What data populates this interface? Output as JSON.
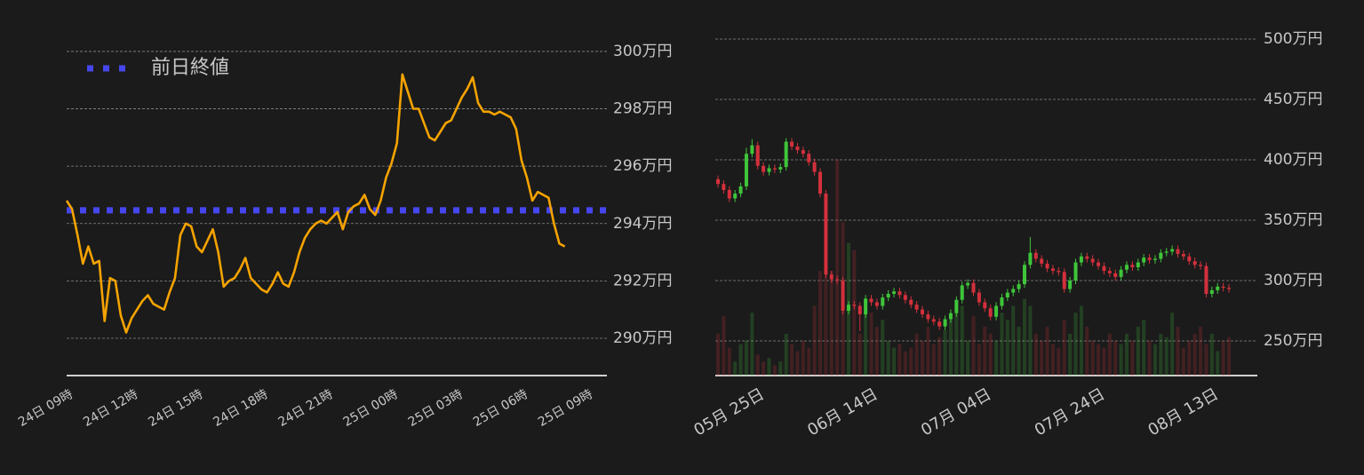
{
  "chart_data": [
    {
      "type": "line",
      "categories": [
        "24日 09時",
        null,
        null,
        null,
        null,
        null,
        null,
        null,
        null,
        null,
        null,
        null,
        "24日 12時",
        null,
        null,
        null,
        null,
        null,
        null,
        null,
        null,
        null,
        null,
        null,
        "24日 15時",
        null,
        null,
        null,
        null,
        null,
        null,
        null,
        null,
        null,
        null,
        null,
        "24日 18時",
        null,
        null,
        null,
        null,
        null,
        null,
        null,
        null,
        null,
        null,
        null,
        "24日 21時",
        null,
        null,
        null,
        null,
        null,
        null,
        null,
        null,
        null,
        null,
        null,
        "25日 00時",
        null,
        null,
        null,
        null,
        null,
        null,
        null,
        null,
        null,
        null,
        null,
        "25日 03時",
        null,
        null,
        null,
        null,
        null,
        null,
        null,
        null,
        null,
        null,
        null,
        "25日 06時",
        null,
        null,
        null,
        null,
        null,
        null,
        null,
        null,
        null,
        null,
        null,
        "25日 09時"
      ],
      "values": [
        2948000,
        2945000,
        2936000,
        2926000,
        2932000,
        2926000,
        2927000,
        2906000,
        2921000,
        2920000,
        2908000,
        2902000,
        2907000,
        2910000,
        2913000,
        2915000,
        2912000,
        2911000,
        2910000,
        2916000,
        2921000,
        2936000,
        2940000,
        2939000,
        2932000,
        2930000,
        2934000,
        2938000,
        2930000,
        2918000,
        2920000,
        2921000,
        2924000,
        2928000,
        2921000,
        2919000,
        2917000,
        2916000,
        2919000,
        2923000,
        2919000,
        2918000,
        2923000,
        2930000,
        2935000,
        2938000,
        2940000,
        2941000,
        2940000,
        2942000,
        2944000,
        2938000,
        2944000,
        2946000,
        2947000,
        2950000,
        2945000,
        2943000,
        2948000,
        2956000,
        2961000,
        2968000,
        2992000,
        2986000,
        2980000,
        2980000,
        2975000,
        2970000,
        2969000,
        2972000,
        2975000,
        2976000,
        2980000,
        2984000,
        2987000,
        2991000,
        2982000,
        2979000,
        2979000,
        2978000,
        2979000,
        2978000,
        2977000,
        2973000,
        2962000,
        2956000,
        2948000,
        2951000,
        2950000,
        2949000,
        2940000,
        2933000,
        2932000,
        null,
        null,
        null,
        null
      ],
      "color": "#f5a300",
      "reference": {
        "name": "前日終値",
        "value": 2944600,
        "color": "#4646ee"
      },
      "legend": "upper left",
      "ylim": [
        2887000,
        3004000
      ],
      "yticks": [
        {
          "value": 2900000,
          "label": "290万円"
        },
        {
          "value": 2920000,
          "label": "292万円"
        },
        {
          "value": 2940000,
          "label": "294万円"
        },
        {
          "value": 2960000,
          "label": "296万円"
        },
        {
          "value": 2980000,
          "label": "298万円"
        },
        {
          "value": 3000000,
          "label": "300万円"
        }
      ],
      "grid": true
    },
    {
      "type": "candlestick",
      "categories": [
        null,
        null,
        null,
        null,
        null,
        null,
        null,
        "05月 25日",
        null,
        null,
        null,
        null,
        null,
        null,
        null,
        null,
        null,
        null,
        null,
        null,
        null,
        null,
        null,
        null,
        null,
        null,
        null,
        "06月 14日",
        null,
        null,
        null,
        null,
        null,
        null,
        null,
        null,
        null,
        null,
        null,
        null,
        null,
        null,
        null,
        null,
        null,
        null,
        null,
        "07月 04日",
        null,
        null,
        null,
        null,
        null,
        null,
        null,
        null,
        null,
        null,
        null,
        null,
        null,
        null,
        null,
        null,
        null,
        null,
        null,
        "07月 24日",
        null,
        null,
        null,
        null,
        null,
        null,
        null,
        null,
        null,
        null,
        null,
        null,
        null,
        null,
        null,
        null,
        null,
        null,
        null,
        "08月 13日",
        null,
        null,
        null
      ],
      "open": [
        3840000,
        3800000,
        3750000,
        3680000,
        3720000,
        3780000,
        4050000,
        4120000,
        3950000,
        3900000,
        3930000,
        3920000,
        3940000,
        4150000,
        4110000,
        4080000,
        4050000,
        3980000,
        3900000,
        3720000,
        3050000,
        3010000,
        3000000,
        2750000,
        2800000,
        2790000,
        2720000,
        2850000,
        2820000,
        2790000,
        2860000,
        2890000,
        2910000,
        2880000,
        2840000,
        2800000,
        2760000,
        2720000,
        2680000,
        2660000,
        2620000,
        2680000,
        2730000,
        2840000,
        2960000,
        2980000,
        2900000,
        2820000,
        2770000,
        2700000,
        2790000,
        2860000,
        2900000,
        2930000,
        2970000,
        3130000,
        3230000,
        3180000,
        3140000,
        3100000,
        3080000,
        3070000,
        2930000,
        3000000,
        3150000,
        3200000,
        3180000,
        3150000,
        3120000,
        3080000,
        3060000,
        3030000,
        3090000,
        3130000,
        3110000,
        3150000,
        3190000,
        3170000,
        3180000,
        3230000,
        3240000,
        3260000,
        3220000,
        3200000,
        3160000,
        3130000,
        3120000,
        2890000,
        2920000,
        2950000,
        2940000
      ],
      "high": [
        3870000,
        3830000,
        3780000,
        3750000,
        3810000,
        4100000,
        4170000,
        4150000,
        3980000,
        3960000,
        3960000,
        3970000,
        4180000,
        4180000,
        4140000,
        4110000,
        4080000,
        4010000,
        3930000,
        3750000,
        3080000,
        3040000,
        3030000,
        2830000,
        2830000,
        2820000,
        2880000,
        2880000,
        2850000,
        2890000,
        2920000,
        2940000,
        2940000,
        2910000,
        2870000,
        2830000,
        2790000,
        2750000,
        2710000,
        2690000,
        2710000,
        2760000,
        2870000,
        2990000,
        3010000,
        3010000,
        2930000,
        2850000,
        2800000,
        2820000,
        2890000,
        2930000,
        2960000,
        3000000,
        3160000,
        3360000,
        3260000,
        3210000,
        3170000,
        3130000,
        3110000,
        3100000,
        3030000,
        3180000,
        3230000,
        3230000,
        3210000,
        3180000,
        3150000,
        3110000,
        3090000,
        3120000,
        3160000,
        3160000,
        3180000,
        3220000,
        3220000,
        3210000,
        3260000,
        3270000,
        3290000,
        3290000,
        3250000,
        3230000,
        3190000,
        3160000,
        3150000,
        2950000,
        2980000,
        2980000,
        2970000
      ],
      "low": [
        3770000,
        3720000,
        3650000,
        3650000,
        3690000,
        3750000,
        4020000,
        3920000,
        3870000,
        3870000,
        3890000,
        3890000,
        3910000,
        4080000,
        4050000,
        4020000,
        3950000,
        3870000,
        3690000,
        3020000,
        2980000,
        2970000,
        2720000,
        2720000,
        2760000,
        2580000,
        2690000,
        2790000,
        2760000,
        2760000,
        2830000,
        2860000,
        2850000,
        2810000,
        2770000,
        2730000,
        2690000,
        2650000,
        2630000,
        2590000,
        2590000,
        2650000,
        2700000,
        2810000,
        2930000,
        2870000,
        2790000,
        2740000,
        2670000,
        2670000,
        2760000,
        2830000,
        2870000,
        2900000,
        2940000,
        3100000,
        3150000,
        3110000,
        3070000,
        3050000,
        3040000,
        2900000,
        2900000,
        2970000,
        3120000,
        3150000,
        3120000,
        3090000,
        3050000,
        3030000,
        3000000,
        3000000,
        3060000,
        3080000,
        3080000,
        3120000,
        3140000,
        3140000,
        3150000,
        3200000,
        3210000,
        3190000,
        3170000,
        3130000,
        3100000,
        3090000,
        2860000,
        2860000,
        2890000,
        2910000,
        2900000
      ],
      "close": [
        3800000,
        3750000,
        3680000,
        3720000,
        3780000,
        4050000,
        4120000,
        3950000,
        3900000,
        3930000,
        3920000,
        3940000,
        4150000,
        4110000,
        4080000,
        4050000,
        3980000,
        3900000,
        3720000,
        3050000,
        3010000,
        3000000,
        2750000,
        2800000,
        2790000,
        2720000,
        2850000,
        2820000,
        2790000,
        2860000,
        2890000,
        2910000,
        2880000,
        2840000,
        2800000,
        2760000,
        2720000,
        2680000,
        2660000,
        2620000,
        2680000,
        2730000,
        2840000,
        2960000,
        2980000,
        2900000,
        2820000,
        2770000,
        2700000,
        2790000,
        2860000,
        2900000,
        2930000,
        2970000,
        3130000,
        3230000,
        3180000,
        3140000,
        3100000,
        3080000,
        3070000,
        2930000,
        3000000,
        3150000,
        3200000,
        3180000,
        3150000,
        3120000,
        3080000,
        3060000,
        3030000,
        3090000,
        3130000,
        3110000,
        3150000,
        3190000,
        3170000,
        3180000,
        3230000,
        3240000,
        3260000,
        3220000,
        3200000,
        3160000,
        3130000,
        3120000,
        2890000,
        2920000,
        2950000,
        2940000,
        2930000
      ],
      "volume": [
        12,
        17,
        8,
        4,
        9,
        10,
        18,
        6,
        4,
        5,
        3,
        4,
        12,
        9,
        7,
        10,
        8,
        20,
        30,
        40,
        30,
        62,
        44,
        38,
        36,
        12,
        22,
        18,
        14,
        16,
        10,
        8,
        9,
        7,
        8,
        12,
        10,
        14,
        9,
        11,
        13,
        16,
        18,
        20,
        10,
        17,
        9,
        14,
        12,
        10,
        18,
        16,
        20,
        14,
        22,
        20,
        12,
        10,
        14,
        9,
        8,
        16,
        12,
        18,
        20,
        14,
        10,
        9,
        8,
        12,
        10,
        9,
        12,
        10,
        14,
        16,
        10,
        9,
        12,
        11,
        18,
        14,
        8,
        10,
        12,
        14,
        9,
        12,
        7,
        10,
        11
      ],
      "volume_lim": [
        0,
        100
      ],
      "up_color": "#3fc53a",
      "down_color": "#d3303c",
      "ylim": [
        2213000,
        5103000
      ],
      "yticks": [
        {
          "value": 2500000,
          "label": "250万円"
        },
        {
          "value": 3000000,
          "label": "300万円"
        },
        {
          "value": 3500000,
          "label": "350万円"
        },
        {
          "value": 4000000,
          "label": "400万円"
        },
        {
          "value": 4500000,
          "label": "450万円"
        },
        {
          "value": 5000000,
          "label": "500万円"
        }
      ],
      "grid": true
    }
  ]
}
